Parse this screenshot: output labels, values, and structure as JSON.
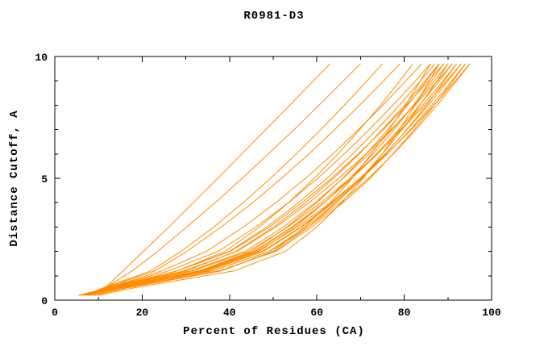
{
  "chart_data": {
    "type": "line",
    "title": "R0981-D3",
    "xlabel": "Percent of Residues (CA)",
    "ylabel": "Distance Cutoff, A",
    "xlim": [
      0,
      100
    ],
    "ylim": [
      0,
      10
    ],
    "x_major_ticks": [
      0,
      20,
      40,
      60,
      80,
      100
    ],
    "x_minor_ticks": [
      10,
      30,
      50,
      70,
      90
    ],
    "y_major_ticks": [
      0,
      5,
      10
    ],
    "y_minor_ticks": [
      1,
      2,
      3,
      4,
      6,
      7,
      8,
      9
    ],
    "grid": "off",
    "legend": "none",
    "line_color": "#ff8c00",
    "axis_color": "#000000",
    "background_color": "#ffffff",
    "y": [
      0.2,
      0.5,
      1.2,
      2,
      3,
      4,
      5,
      6,
      7,
      8,
      9,
      9.7
    ],
    "series": [
      [
        9,
        11.5,
        15.6,
        20.3,
        26.1,
        31.7,
        37.3,
        42.8,
        48.3,
        53.8,
        59.2,
        63
      ],
      [
        8,
        11.5,
        17.7,
        23.5,
        30.2,
        36.7,
        42.9,
        48.9,
        54.8,
        60.5,
        66.1,
        70
      ],
      [
        7,
        11,
        22,
        28.9,
        36.4,
        43.1,
        49.4,
        55.3,
        60.9,
        66.3,
        71.5,
        75
      ],
      [
        7,
        11.5,
        22.9,
        30.2,
        38.1,
        45.3,
        51.9,
        58.2,
        64.1,
        69.8,
        75.3,
        79
      ],
      [
        6,
        12,
        24.5,
        34.7,
        43.2,
        50.6,
        57.4,
        63.7,
        69.5,
        75.1,
        80.4,
        84
      ],
      [
        6,
        12,
        26,
        37.4,
        46,
        53.5,
        60.2,
        66.3,
        72,
        77.4,
        82.6,
        86
      ],
      [
        7,
        13,
        28,
        40,
        48.5,
        55.8,
        62.3,
        68.2,
        73.7,
        78.9,
        83.7,
        87
      ],
      [
        5.5,
        12.5,
        30,
        41.5,
        50.1,
        57.4,
        63.8,
        69.7,
        75,
        80.1,
        84.8,
        88
      ],
      [
        7.5,
        14,
        33,
        45,
        53.1,
        60,
        65.9,
        71.3,
        76.3,
        80.8,
        85.1,
        88
      ],
      [
        6,
        12,
        28,
        40.2,
        49.1,
        56.6,
        63.3,
        69.5,
        75.2,
        80.5,
        85.6,
        89
      ],
      [
        7,
        14.5,
        34,
        46.8,
        55,
        61.7,
        67.6,
        72.9,
        77.7,
        82.1,
        86.3,
        89
      ],
      [
        5.5,
        12,
        31,
        43.6,
        52.3,
        59.6,
        66,
        71.9,
        77.2,
        82.2,
        86.9,
        90
      ],
      [
        8,
        16,
        38,
        50.3,
        58.1,
        64.5,
        70.1,
        75,
        79.5,
        83.6,
        87.5,
        90
      ],
      [
        6.5,
        13,
        33,
        45.9,
        54.5,
        61.7,
        68,
        73.6,
        78.8,
        83.5,
        88,
        91
      ],
      [
        6,
        12.5,
        29.5,
        41.7,
        50.6,
        58.2,
        65,
        71.3,
        77,
        82.4,
        87.6,
        91
      ],
      [
        7,
        14,
        36,
        49.1,
        57.5,
        64.4,
        70.4,
        75.7,
        80.6,
        85.1,
        89.2,
        92
      ],
      [
        7.5,
        13.5,
        33,
        45.6,
        54.3,
        61.6,
        68,
        73.9,
        79.2,
        84.2,
        88.9,
        92
      ],
      [
        6.5,
        13.5,
        34.5,
        47.5,
        56.3,
        63.5,
        69.9,
        75.6,
        80.7,
        85.5,
        90,
        93
      ],
      [
        6,
        12.5,
        31.5,
        44.3,
        53.3,
        60.9,
        67.6,
        73.8,
        79.4,
        84.7,
        89.7,
        93
      ],
      [
        7,
        15,
        37.5,
        50.6,
        58.8,
        66,
        72.2,
        77.4,
        82.3,
        86.9,
        91.2,
        94
      ],
      [
        7.5,
        14.5,
        35,
        47.8,
        56.5,
        63.9,
        70.3,
        76.1,
        81.4,
        86.3,
        90.9,
        94
      ],
      [
        5.5,
        13,
        36,
        49.2,
        58.1,
        65.4,
        71.8,
        77.5,
        82.7,
        87.5,
        92,
        95
      ],
      [
        6,
        13,
        33.5,
        46.4,
        55.5,
        63.2,
        69.9,
        76,
        81.6,
        86.8,
        91.7,
        95
      ],
      [
        9,
        16.5,
        38,
        49.9,
        57.2,
        63,
        68.1,
        72.5,
        76.6,
        80.3,
        83.7,
        86
      ],
      [
        8,
        12,
        28,
        39,
        46.8,
        53.5,
        59.4,
        64.8,
        69.8,
        74.6,
        79,
        82
      ],
      [
        10,
        18,
        41,
        52.8,
        60,
        65.7,
        70.6,
        75,
        78.9,
        82.5,
        85.8,
        88
      ]
    ]
  }
}
